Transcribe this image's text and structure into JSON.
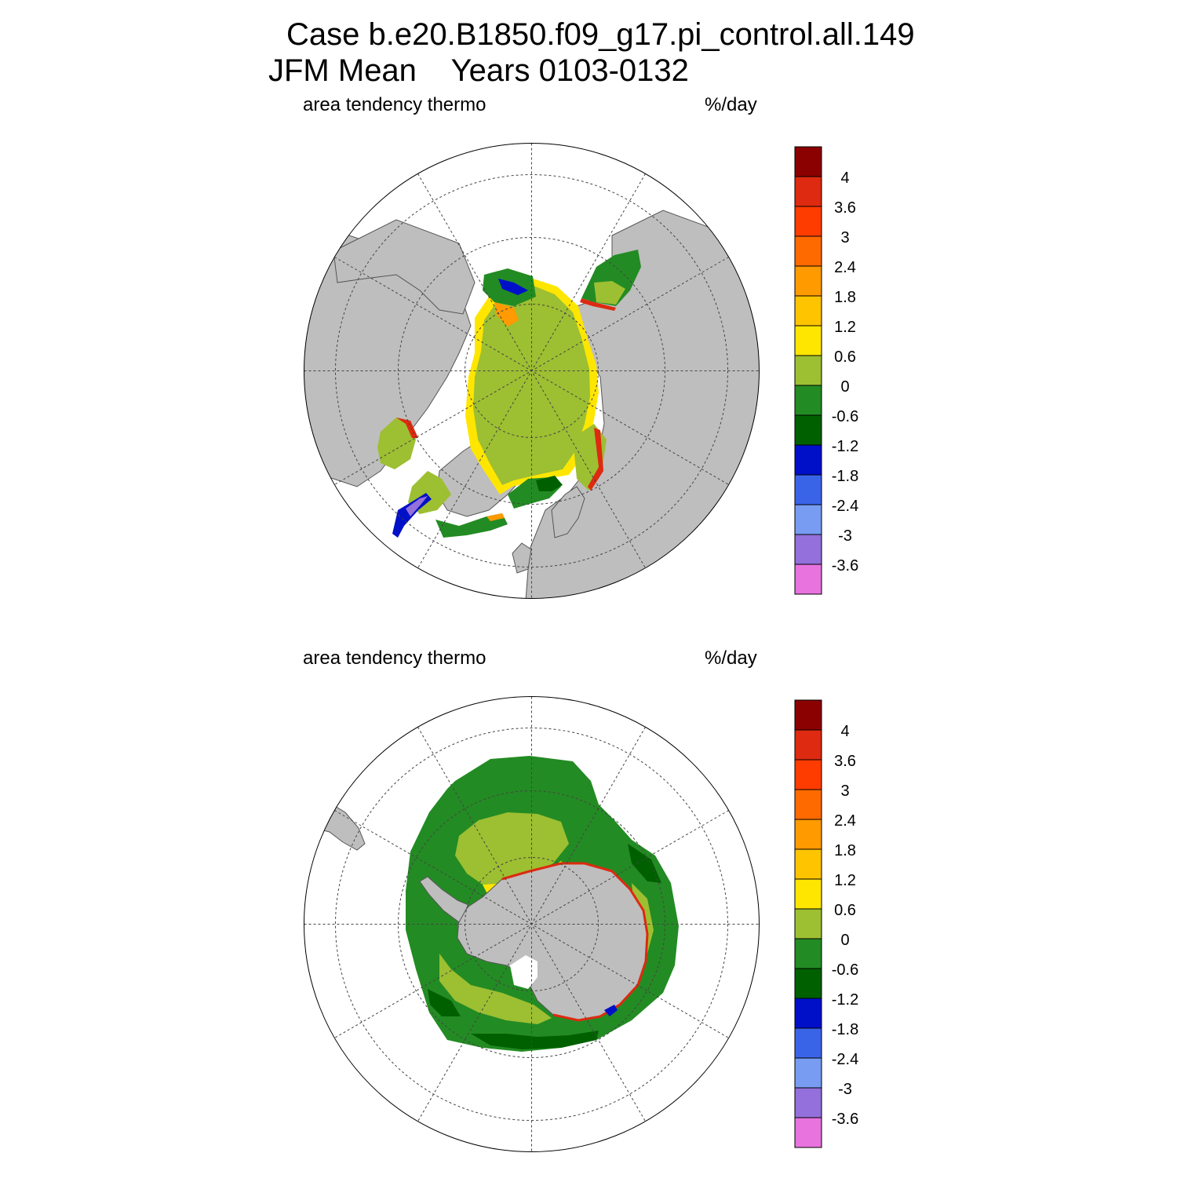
{
  "header": {
    "line1": "Case b.e20.B1850.f09_g17.pi_control.all.149",
    "line2": "JFM Mean    Years 0103-0132"
  },
  "panels": [
    {
      "hemisphere": "north",
      "left_label": "area tendency thermo",
      "right_label": "%/day"
    },
    {
      "hemisphere": "south",
      "left_label": "area tendency thermo",
      "right_label": "%/day"
    }
  ],
  "colorbar": {
    "labels": [
      "4",
      "3.6",
      "3",
      "2.4",
      "1.8",
      "1.2",
      "0.6",
      "0",
      "-0.6",
      "-1.2",
      "-1.8",
      "-2.4",
      "-3",
      "-3.6"
    ],
    "colors": [
      "#8b0000",
      "#dd2a10",
      "#ff3c00",
      "#ff6a00",
      "#ff9a00",
      "#ffc400",
      "#ffe600",
      "#9dbf32",
      "#238b23",
      "#006000",
      "#0010c8",
      "#3a64e8",
      "#789cf2",
      "#9370db",
      "#e873de"
    ]
  },
  "colors": {
    "land": "#bebebe",
    "coast": "#555555",
    "grid": "#444444",
    "pale_green": "#9dbf32",
    "green": "#238b23",
    "dark_green": "#006000",
    "yellow": "#ffe600",
    "orange": "#ff9a00",
    "red": "#dd2a10",
    "blue": "#0010c8",
    "purple": "#9370db"
  },
  "chart_data": [
    {
      "type": "heatmap",
      "projection": "north-polar-stereographic",
      "title": "area tendency thermo",
      "units": "%/day",
      "levels": [
        -3.6,
        -3,
        -2.4,
        -1.8,
        -1.2,
        -0.6,
        0,
        0.6,
        1.2,
        1.8,
        2.4,
        3,
        3.6,
        4
      ]
    },
    {
      "type": "heatmap",
      "projection": "south-polar-stereographic",
      "title": "area tendency thermo",
      "units": "%/day",
      "levels": [
        -3.6,
        -3,
        -2.4,
        -1.8,
        -1.2,
        -0.6,
        0,
        0.6,
        1.2,
        1.8,
        2.4,
        3,
        3.6,
        4
      ]
    }
  ]
}
